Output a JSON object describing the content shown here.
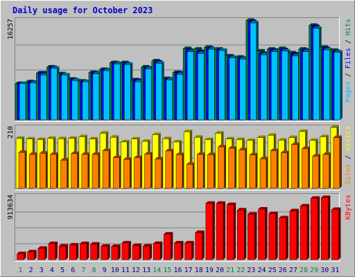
{
  "title": "Daily usage for October 2023",
  "colors": {
    "background": "#C0C0C0",
    "title": "#0000CC",
    "hits": "#008040",
    "files": "#0000FF",
    "pages": "#00C0FF",
    "visits": "#FFFF00",
    "sites": "#FF8000",
    "kbytes": "#FF0000",
    "weekend_day": "#008040",
    "weekday_day": "#000080"
  },
  "chart_data": [
    {
      "type": "bar",
      "panel": "hits-files-pages",
      "max_label": "16257",
      "ylim": [
        0,
        16257
      ],
      "legend": [
        "Pages",
        "Files",
        "Hits"
      ],
      "x": [
        1,
        2,
        3,
        4,
        5,
        6,
        7,
        8,
        9,
        10,
        11,
        12,
        13,
        14,
        15,
        16,
        17,
        18,
        19,
        20,
        21,
        22,
        23,
        24,
        25,
        26,
        27,
        28,
        29,
        30,
        31
      ],
      "series": [
        {
          "name": "Hits",
          "values": [
            5900,
            6200,
            7600,
            8600,
            7500,
            6600,
            6300,
            7700,
            8200,
            9300,
            9300,
            6500,
            8600,
            9600,
            6700,
            7700,
            11600,
            11500,
            11800,
            11500,
            10400,
            10200,
            16200,
            11200,
            11500,
            11600,
            10900,
            11500,
            15400,
            11800,
            11300
          ]
        },
        {
          "name": "Files",
          "values": [
            5900,
            6100,
            7600,
            8500,
            7300,
            6500,
            6200,
            7600,
            8100,
            9200,
            9100,
            6400,
            8400,
            9400,
            6600,
            7600,
            11300,
            11100,
            11600,
            11300,
            10200,
            10000,
            16000,
            10800,
            11300,
            11400,
            10700,
            11300,
            15200,
            11600,
            11100
          ]
        },
        {
          "name": "Pages",
          "values": [
            5900,
            6000,
            7300,
            8400,
            7300,
            6400,
            6200,
            7500,
            8000,
            9100,
            9000,
            6200,
            8300,
            9200,
            6500,
            7400,
            11100,
            10800,
            11500,
            11300,
            10100,
            9900,
            15800,
            10600,
            11100,
            11200,
            10400,
            11100,
            14900,
            11400,
            11000
          ]
        }
      ]
    },
    {
      "type": "bar",
      "panel": "visits-sites",
      "max_label": "210",
      "ylim": [
        0,
        210
      ],
      "legend": [
        "Sites",
        "Visits"
      ],
      "x": [
        1,
        2,
        3,
        4,
        5,
        6,
        7,
        8,
        9,
        10,
        11,
        12,
        13,
        14,
        15,
        16,
        17,
        18,
        19,
        20,
        21,
        22,
        23,
        24,
        25,
        26,
        27,
        28,
        29,
        30,
        31
      ],
      "series": [
        {
          "name": "Visits",
          "values": [
            172,
            170,
            168,
            172,
            171,
            172,
            178,
            170,
            190,
            176,
            160,
            170,
            162,
            185,
            171,
            160,
            195,
            176,
            168,
            190,
            170,
            168,
            165,
            175,
            183,
            166,
            175,
            196,
            165,
            178,
            210
          ]
        },
        {
          "name": "Sites",
          "values": [
            124,
            117,
            121,
            117,
            97,
            120,
            117,
            117,
            130,
            106,
            100,
            106,
            118,
            101,
            129,
            116,
            83,
            117,
            116,
            143,
            138,
            133,
            115,
            102,
            130,
            123,
            151,
            137,
            111,
            117,
            175
          ]
        }
      ]
    },
    {
      "type": "bar",
      "panel": "kbytes",
      "max_label": "913634",
      "ylim": [
        0,
        913634
      ],
      "legend": [
        "KBytes"
      ],
      "x": [
        1,
        2,
        3,
        4,
        5,
        6,
        7,
        8,
        9,
        10,
        11,
        12,
        13,
        14,
        15,
        16,
        17,
        18,
        19,
        20,
        21,
        22,
        23,
        24,
        25,
        26,
        27,
        28,
        29,
        30,
        31
      ],
      "series": [
        {
          "name": "KBytes",
          "values": [
            86000,
            112000,
            163000,
            230000,
            195000,
            210000,
            230000,
            222000,
            192000,
            190000,
            240000,
            202000,
            195000,
            232000,
            366000,
            240000,
            240000,
            390000,
            808000,
            808000,
            790000,
            712000,
            652000,
            725000,
            660000,
            600000,
            700000,
            770000,
            880000,
            890000,
            720000
          ]
        }
      ]
    }
  ],
  "weekend_days": [
    1,
    7,
    8,
    14,
    15,
    21,
    22,
    28,
    29
  ]
}
